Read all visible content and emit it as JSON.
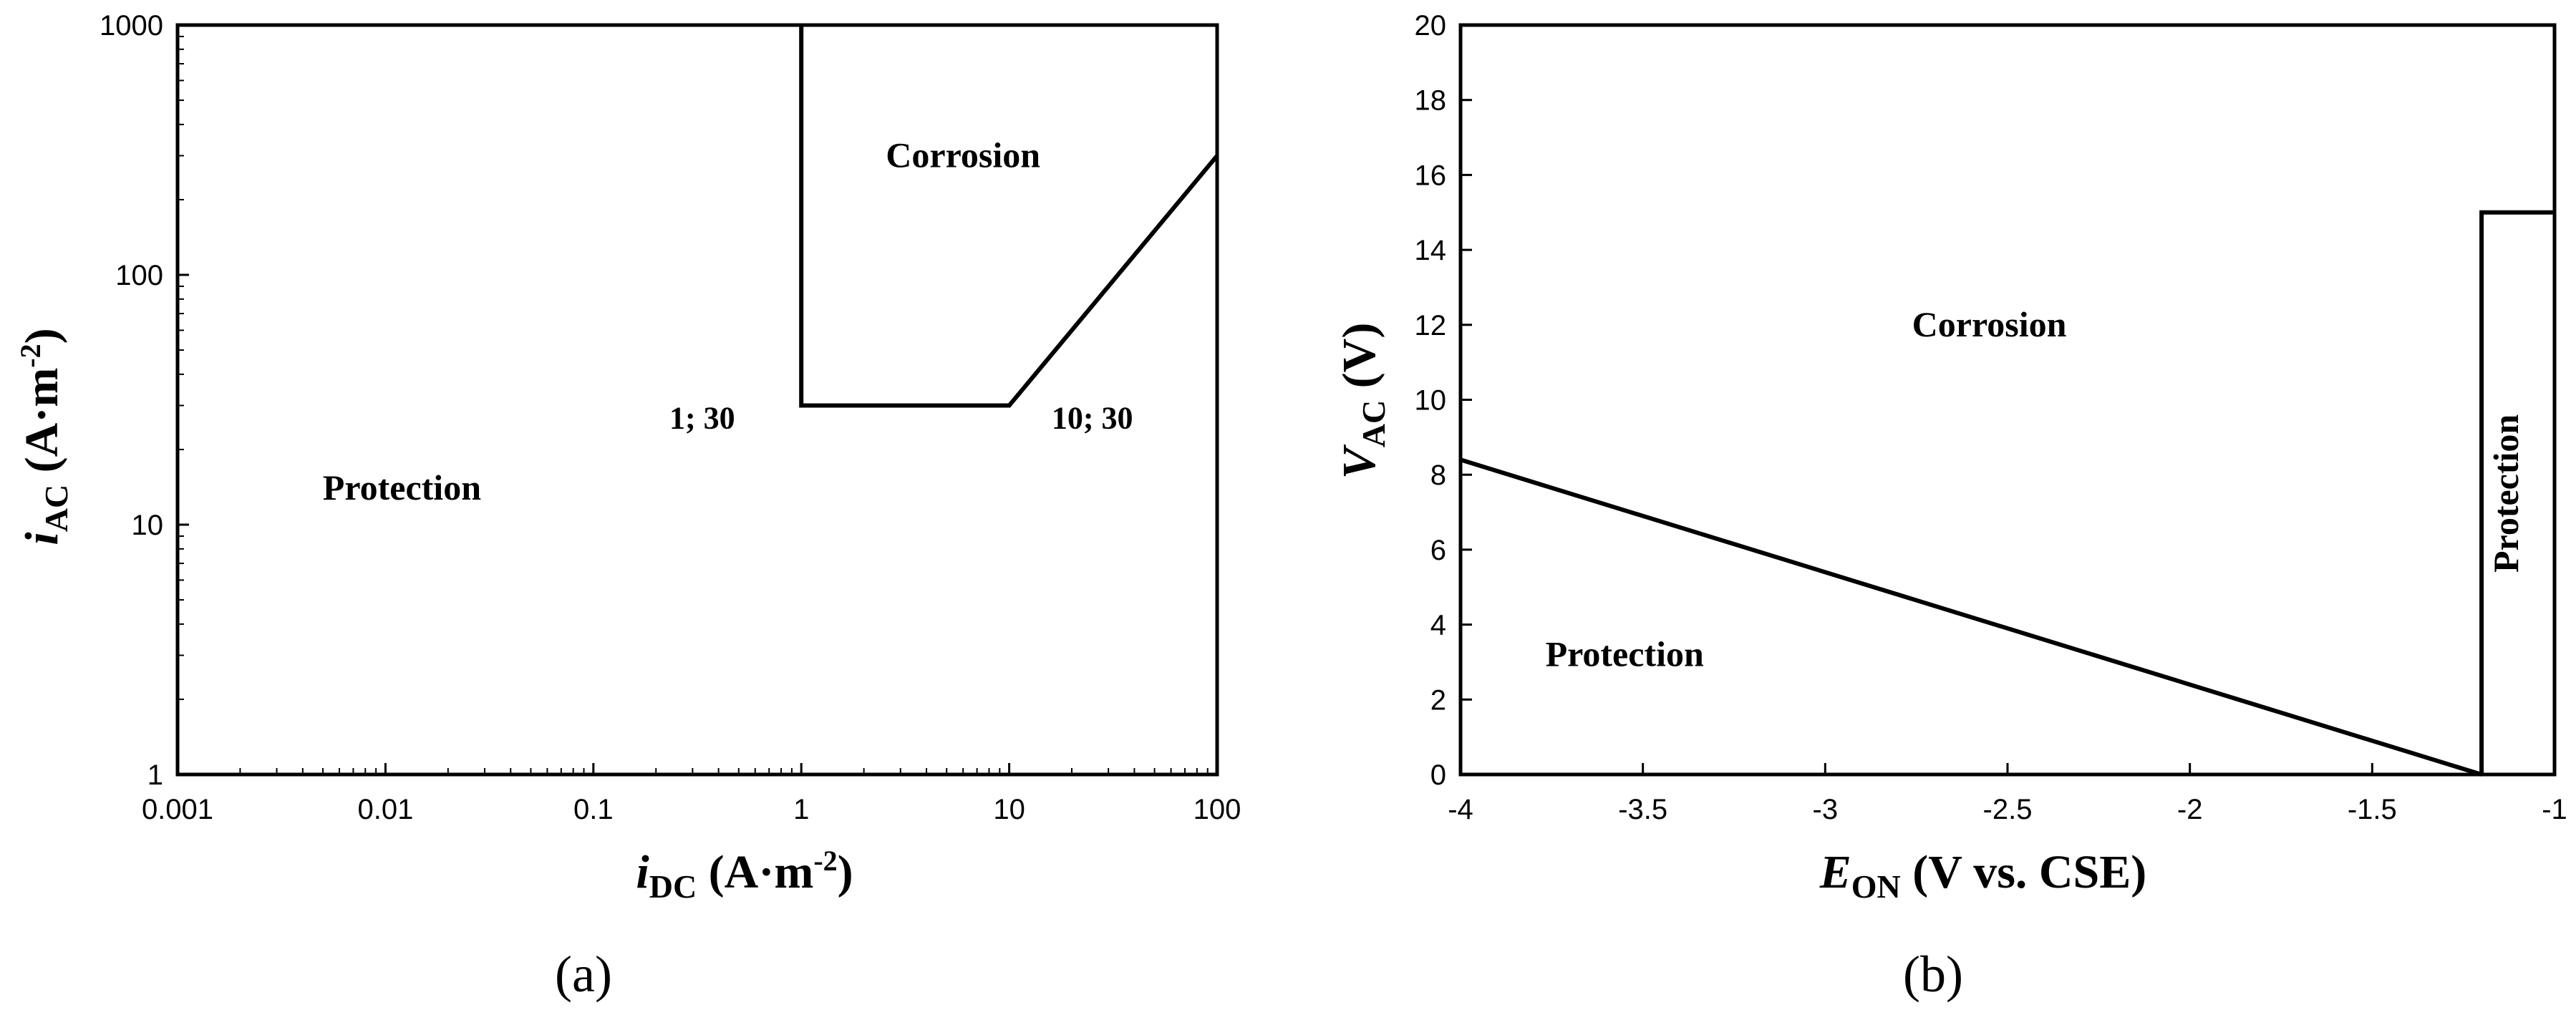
{
  "chart_data": [
    {
      "type": "line",
      "panel_label": "a",
      "xlabel": {
        "sym": "i",
        "sub": "DC",
        "unit_main": " (A·m",
        "unit_sup": "-2",
        "unit_end": ")"
      },
      "ylabel": {
        "sym": "i",
        "sub": "AC",
        "unit_main": " (A·m",
        "unit_sup": "-2",
        "unit_end": ")"
      },
      "xscale": "log",
      "yscale": "log",
      "xlim": [
        0.001,
        100
      ],
      "ylim": [
        1,
        1000
      ],
      "xticks": [
        0.001,
        0.01,
        0.1,
        1,
        10,
        100
      ],
      "xtick_labels": [
        "0.001",
        "0.01",
        "0.1",
        "1",
        "10",
        "100"
      ],
      "yticks": [
        1,
        10,
        100,
        1000
      ],
      "ytick_labels": [
        "1",
        "10",
        "100",
        "1000"
      ],
      "grid": false,
      "series": [
        {
          "x": [
            1,
            1,
            10,
            100
          ],
          "y": [
            1000,
            30,
            30,
            300
          ]
        }
      ],
      "annotations": [
        {
          "text": "Corrosion",
          "x": 6,
          "y": 300
        },
        {
          "text": "Protection",
          "x": 0.012,
          "y": 14
        },
        {
          "text": "1; 30",
          "x": 0.48,
          "y": 30
        },
        {
          "text": "10; 30",
          "x": 16,
          "y": 30
        }
      ]
    },
    {
      "type": "line",
      "panel_label": "b",
      "xlabel": {
        "sym": "E",
        "sub": "ON",
        "unit_main": " (V vs. CSE)"
      },
      "ylabel": {
        "sym": "V",
        "sub": "AC",
        "unit_main": " (V)"
      },
      "xscale": "linear",
      "yscale": "linear",
      "xlim": [
        -4,
        -1
      ],
      "ylim": [
        0,
        20
      ],
      "xticks": [
        -4,
        -3.5,
        -3,
        -2.5,
        -2,
        -1.5,
        -1
      ],
      "xtick_labels": [
        "-4",
        "-3.5",
        "-3",
        "-2.5",
        "-2",
        "-1.5",
        "-1"
      ],
      "yticks": [
        0,
        2,
        4,
        6,
        8,
        10,
        12,
        14,
        16,
        18,
        20
      ],
      "ytick_labels": [
        "0",
        "2",
        "4",
        "6",
        "8",
        "10",
        "12",
        "14",
        "16",
        "18",
        "20"
      ],
      "grid": false,
      "series": [
        {
          "x": [
            -4,
            -1.2
          ],
          "y": [
            8.4,
            0
          ]
        },
        {
          "x": [
            -1.2,
            -1.2,
            -1
          ],
          "y": [
            0,
            15,
            15
          ]
        }
      ],
      "annotations": [
        {
          "text": "Corrosion",
          "x": -2.55,
          "y": 12
        },
        {
          "text": "Protection",
          "x": -3.55,
          "y": 3.2
        },
        {
          "text": "Protection",
          "x": -1.1,
          "y": 7.5,
          "rotation": -90
        }
      ]
    }
  ]
}
